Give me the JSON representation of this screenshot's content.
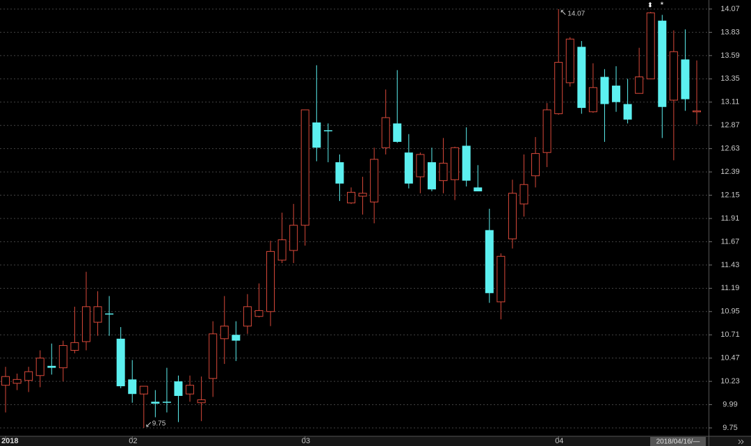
{
  "chart_data": {
    "type": "candlestick",
    "categories": [
      "2018",
      null,
      null,
      null,
      null,
      null,
      null,
      null,
      null,
      null,
      null,
      "02",
      null,
      null,
      null,
      null,
      null,
      null,
      null,
      null,
      null,
      null,
      null,
      null,
      null,
      null,
      "03",
      null,
      null,
      null,
      null,
      null,
      null,
      null,
      null,
      null,
      null,
      null,
      null,
      null,
      null,
      null,
      null,
      null,
      null,
      null,
      null,
      null,
      "04",
      null,
      null,
      null,
      null,
      null,
      null,
      null,
      null,
      null,
      null,
      null,
      null
    ],
    "open": [
      10.19,
      10.21,
      10.24,
      10.29,
      10.39,
      10.37,
      10.55,
      10.64,
      10.84,
      10.93,
      10.67,
      10.25,
      10.1,
      10.02,
      10.02,
      10.23,
      10.1,
      10.01,
      10.26,
      10.67,
      10.71,
      10.8,
      10.9,
      10.95,
      11.48,
      11.58,
      11.84,
      12.9,
      12.82,
      12.49,
      12.07,
      12.14,
      12.08,
      12.64,
      12.89,
      12.59,
      12.34,
      12.49,
      12.3,
      12.31,
      12.66,
      12.23,
      11.79,
      11.05,
      11.7,
      12.06,
      12.35,
      12.59,
      12.99,
      13.31,
      13.68,
      13.01,
      13.37,
      13.28,
      13.09,
      13.2,
      13.35,
      13.95,
      13.13,
      13.55,
      13.01
    ],
    "high": [
      10.38,
      10.31,
      10.38,
      10.55,
      10.62,
      10.65,
      11.0,
      11.36,
      11.16,
      11.11,
      10.79,
      10.45,
      10.18,
      10.14,
      10.37,
      10.29,
      10.29,
      10.28,
      10.85,
      11.11,
      10.85,
      11.13,
      11.24,
      11.68,
      11.97,
      12.06,
      13.03,
      13.49,
      12.89,
      12.57,
      12.23,
      12.34,
      12.64,
      13.24,
      13.44,
      12.78,
      12.59,
      12.64,
      12.74,
      12.65,
      12.85,
      12.46,
      12.01,
      11.55,
      12.31,
      12.57,
      12.75,
      13.1,
      14.07,
      13.78,
      13.74,
      13.51,
      13.45,
      13.48,
      13.35,
      13.67,
      14.04,
      14.01,
      13.85,
      13.86,
      13.54
    ],
    "low": [
      9.91,
      10.14,
      10.12,
      10.17,
      10.3,
      10.23,
      10.52,
      10.55,
      10.7,
      10.7,
      10.16,
      10.01,
      9.75,
      9.86,
      9.91,
      9.81,
      10.02,
      9.82,
      10.07,
      10.41,
      10.44,
      10.72,
      10.89,
      10.8,
      11.45,
      11.45,
      11.63,
      12.5,
      12.49,
      12.09,
      12.06,
      11.95,
      11.86,
      12.57,
      12.69,
      12.22,
      12.17,
      12.19,
      12.17,
      12.1,
      12.24,
      12.19,
      11.04,
      10.87,
      11.6,
      11.93,
      12.23,
      12.44,
      12.98,
      13.27,
      12.99,
      13.0,
      12.7,
      13.01,
      12.89,
      13.2,
      13.35,
      12.74,
      12.51,
      13.02,
      12.88
    ],
    "close": [
      10.28,
      10.25,
      10.33,
      10.47,
      10.37,
      10.6,
      10.63,
      11.0,
      11.0,
      10.92,
      10.18,
      10.1,
      10.18,
      10.0,
      10.01,
      10.08,
      10.19,
      10.04,
      10.72,
      10.8,
      10.65,
      11.0,
      10.96,
      11.57,
      11.69,
      11.84,
      13.03,
      12.64,
      12.81,
      12.27,
      12.18,
      12.17,
      12.52,
      12.95,
      12.7,
      12.27,
      12.57,
      12.21,
      12.48,
      12.64,
      12.3,
      12.19,
      11.14,
      11.52,
      12.17,
      12.26,
      12.58,
      13.03,
      13.52,
      13.76,
      13.05,
      13.26,
      13.09,
      13.11,
      12.93,
      13.37,
      14.03,
      13.06,
      13.63,
      13.14,
      13.02
    ],
    "up_color": "#d9493a",
    "down_color": "#5cf0f0",
    "ylim": [
      9.664,
      14.163
    ],
    "yticks": [
      9.75,
      9.99,
      10.23,
      10.47,
      10.71,
      10.95,
      11.19,
      11.43,
      11.67,
      11.91,
      12.15,
      12.39,
      12.63,
      12.87,
      13.11,
      13.35,
      13.59,
      13.83,
      14.07
    ],
    "grid": true,
    "high_label": "14.07",
    "low_label": "9.75",
    "markers": [
      "⬍",
      "*"
    ],
    "cursor_label": "2018/04/16/—"
  }
}
